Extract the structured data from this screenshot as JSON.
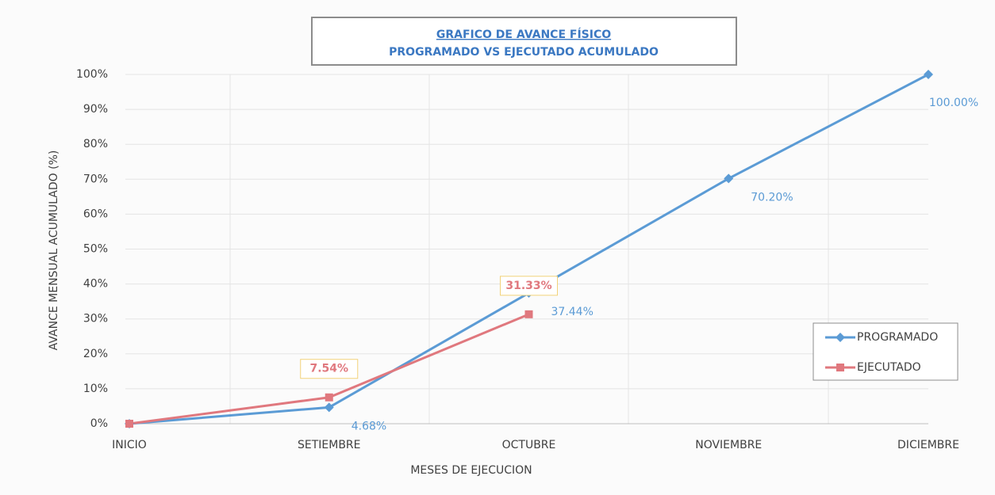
{
  "chart_data": {
    "type": "line",
    "title": "GRAFICO DE AVANCE FÍSICO",
    "subtitle": "PROGRAMADO VS EJECUTADO ACUMULADO",
    "x_label": "MESES DE EJECUCION",
    "y_label": "AVANCE MENSUAL ACUMULADO (%)",
    "categories": [
      "INICIO",
      "SETIEMBRE",
      "OCTUBRE",
      "NOVIEMBRE",
      "DICIEMBRE"
    ],
    "series": [
      {
        "name": "PROGRAMADO",
        "color": "#5b9bd5",
        "values": [
          0,
          4.68,
          37.44,
          70.2,
          100
        ],
        "value_labels": [
          null,
          "4.68%",
          "37.44%",
          "70.20%",
          "100.00%"
        ]
      },
      {
        "name": "EJECUTADO",
        "color": "#e0787e",
        "values": [
          0,
          7.54,
          31.33,
          null,
          null
        ],
        "value_labels": [
          null,
          "7.54%",
          "31.33%",
          null,
          null
        ]
      }
    ],
    "ylim": [
      0,
      100
    ],
    "yticks": [
      {
        "value": 0,
        "label": "0%"
      },
      {
        "value": 10,
        "label": "10%"
      },
      {
        "value": 20,
        "label": "20%"
      },
      {
        "value": 30,
        "label": "30%"
      },
      {
        "value": 40,
        "label": "40%"
      },
      {
        "value": 50,
        "label": "50%"
      },
      {
        "value": 60,
        "label": "60%"
      },
      {
        "value": 70,
        "label": "70%"
      },
      {
        "value": 80,
        "label": "80%"
      },
      {
        "value": 90,
        "label": "90%"
      },
      {
        "value": 100,
        "label": "100%"
      }
    ],
    "grid": true,
    "legend": "right"
  }
}
